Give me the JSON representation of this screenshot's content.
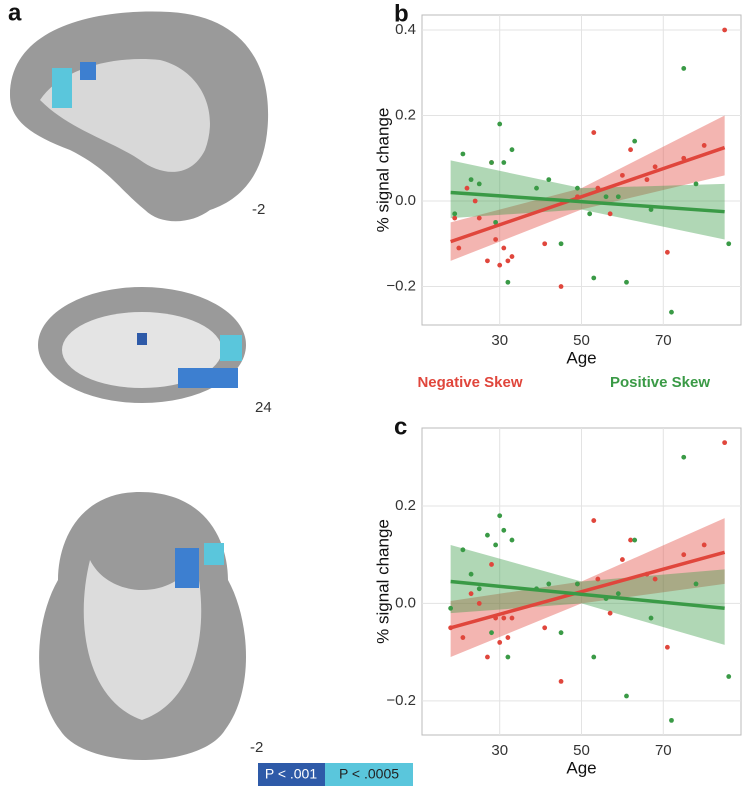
{
  "panel_a": {
    "label": "a",
    "slices": [
      "-2",
      "24",
      "-2"
    ],
    "legend": [
      "P < .001",
      "P < .0005"
    ]
  },
  "chart_data": [
    {
      "type": "scatter",
      "panel_label": "b",
      "xlabel": "Age",
      "ylabel": "% signal change",
      "xlim": [
        11,
        89
      ],
      "ylim": [
        -0.29,
        0.435
      ],
      "xticks": [
        30,
        50,
        70
      ],
      "yticks": [
        {
          "value": -0.2,
          "label": "−0.2"
        },
        {
          "value": 0,
          "label": "0.0"
        },
        0.2,
        0.4
      ],
      "grid": true,
      "series": [
        {
          "name": "Negative Skew",
          "color": "#e0463c",
          "x": [
            19,
            20,
            22,
            24,
            25,
            27,
            28,
            29,
            30,
            31,
            32,
            33,
            41,
            45,
            49,
            53,
            54,
            57,
            60,
            62,
            66,
            68,
            71,
            75,
            80,
            85
          ],
          "values": [
            -0.04,
            -0.11,
            0.03,
            0.0,
            -0.04,
            -0.14,
            0.09,
            -0.09,
            -0.15,
            -0.11,
            -0.14,
            -0.13,
            -0.1,
            -0.2,
            0.01,
            0.16,
            0.03,
            -0.03,
            0.06,
            0.12,
            0.05,
            0.08,
            -0.12,
            0.1,
            0.13,
            0.4
          ]
        },
        {
          "name": "Positive Skew",
          "color": "#3a9a46",
          "x": [
            19,
            21,
            23,
            25,
            28,
            29,
            30,
            31,
            32,
            33,
            39,
            42,
            45,
            49,
            52,
            53,
            56,
            59,
            61,
            63,
            67,
            72,
            75,
            78,
            86
          ],
          "values": [
            -0.03,
            0.11,
            0.05,
            0.04,
            0.09,
            -0.05,
            0.18,
            0.09,
            -0.19,
            0.12,
            0.03,
            0.05,
            -0.1,
            0.03,
            -0.03,
            -0.18,
            0.01,
            0.01,
            -0.19,
            0.14,
            -0.02,
            -0.26,
            0.31,
            0.04,
            -0.1
          ]
        }
      ],
      "fits": [
        {
          "x": [
            18,
            85
          ],
          "values": [
            -0.095,
            0.125
          ]
        },
        {
          "x": [
            18,
            85
          ],
          "values": [
            0.02,
            -0.025
          ]
        }
      ],
      "bands": [
        {
          "x": [
            18,
            50,
            85
          ],
          "lower": [
            -0.14,
            -0.02,
            0.06
          ],
          "upper": [
            -0.05,
            0.03,
            0.2
          ]
        },
        {
          "x": [
            18,
            50,
            85
          ],
          "lower": [
            -0.04,
            -0.02,
            -0.09
          ],
          "upper": [
            0.095,
            0.03,
            0.04
          ]
        }
      ]
    },
    {
      "type": "scatter",
      "panel_label": "c",
      "xlabel": "Age",
      "ylabel": "% signal change",
      "xlim": [
        11,
        89
      ],
      "ylim": [
        -0.27,
        0.36
      ],
      "xticks": [
        30,
        50,
        70
      ],
      "yticks": [
        {
          "value": -0.2,
          "label": "−0.2"
        },
        {
          "value": 0,
          "label": "0.0"
        },
        0.2
      ],
      "grid": true,
      "series": [
        {
          "color": "#e0463c",
          "x": [
            18,
            21,
            23,
            25,
            27,
            28,
            29,
            30,
            31,
            32,
            33,
            41,
            45,
            49,
            53,
            54,
            57,
            60,
            62,
            66,
            68,
            71,
            75,
            80,
            85
          ],
          "values": [
            -0.05,
            -0.07,
            0.02,
            0.0,
            -0.11,
            0.08,
            -0.03,
            -0.08,
            -0.03,
            -0.07,
            -0.03,
            -0.05,
            -0.16,
            0.04,
            0.17,
            0.05,
            -0.02,
            0.09,
            0.13,
            0.06,
            0.05,
            -0.09,
            0.1,
            0.12,
            0.33
          ]
        },
        {
          "color": "#3a9a46",
          "x": [
            18,
            21,
            23,
            25,
            27,
            28,
            29,
            30,
            31,
            32,
            33,
            39,
            42,
            45,
            49,
            53,
            56,
            59,
            61,
            63,
            67,
            72,
            75,
            78,
            86
          ],
          "values": [
            -0.01,
            0.11,
            0.06,
            0.03,
            0.14,
            -0.06,
            0.12,
            0.18,
            0.15,
            -0.11,
            0.13,
            0.03,
            0.04,
            -0.06,
            0.04,
            -0.11,
            0.01,
            0.02,
            -0.19,
            0.13,
            -0.03,
            -0.24,
            0.3,
            0.04,
            -0.15
          ]
        }
      ],
      "fits": [
        {
          "x": [
            18,
            85
          ],
          "values": [
            -0.05,
            0.105
          ]
        },
        {
          "x": [
            18,
            85
          ],
          "values": [
            0.045,
            -0.01
          ]
        }
      ],
      "bands": [
        {
          "x": [
            18,
            50,
            85
          ],
          "lower": [
            -0.11,
            0.0,
            0.04
          ],
          "upper": [
            0.005,
            0.045,
            0.175
          ]
        },
        {
          "x": [
            18,
            50,
            85
          ],
          "lower": [
            -0.02,
            0.0,
            -0.085
          ],
          "upper": [
            0.12,
            0.045,
            0.07
          ]
        }
      ]
    }
  ]
}
